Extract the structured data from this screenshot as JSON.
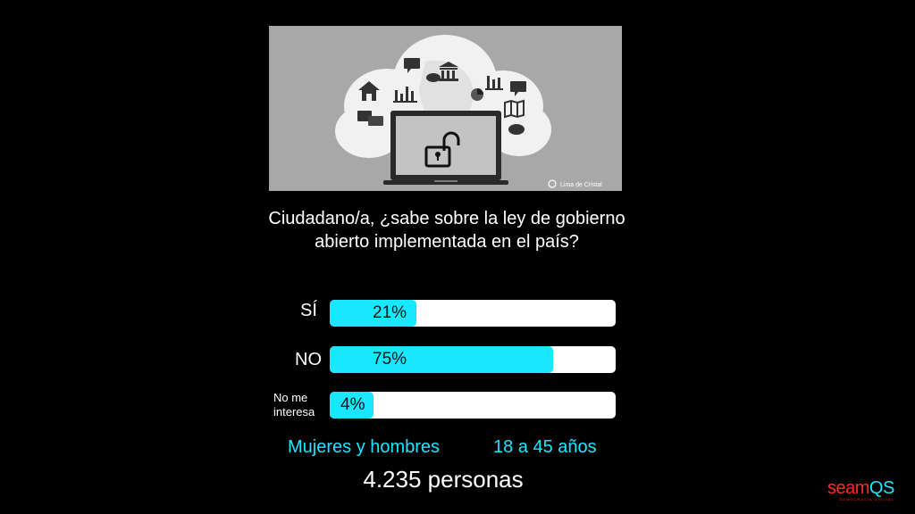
{
  "hero": {
    "watermark": "Lima de Cristal",
    "icons": [
      "home-icon",
      "chat-icon",
      "bar-chart-icon",
      "building-icon",
      "download-cloud-icon",
      "map-icon",
      "pie-chart-icon",
      "laptop-icon",
      "unlocked-padlock-icon"
    ]
  },
  "survey": {
    "question": "Ciudadano/a, ¿sabe sobre la ley de gobierno abierto implementada en el país?",
    "options": [
      {
        "label": "SÍ",
        "value_label": "21%",
        "value": 21
      },
      {
        "label": "NO",
        "value_label": "75%",
        "value": 75
      },
      {
        "label": "No me interesa",
        "value_label": "4%",
        "value": 4
      }
    ],
    "colors": {
      "accent": "#19e6ff",
      "bar_bg": "#ffffff",
      "background": "#000000"
    }
  },
  "demographics": {
    "gender": "Mujeres y hombres",
    "age": "18 a 45 años",
    "total": "4.235 personas"
  },
  "brand": {
    "name_part1": "seam",
    "name_part2": "QS",
    "tagline": "DEMOCRACIA DIGITAL",
    "colors": {
      "primary": "#ff2a2a",
      "accent": "#19e6ff"
    }
  }
}
